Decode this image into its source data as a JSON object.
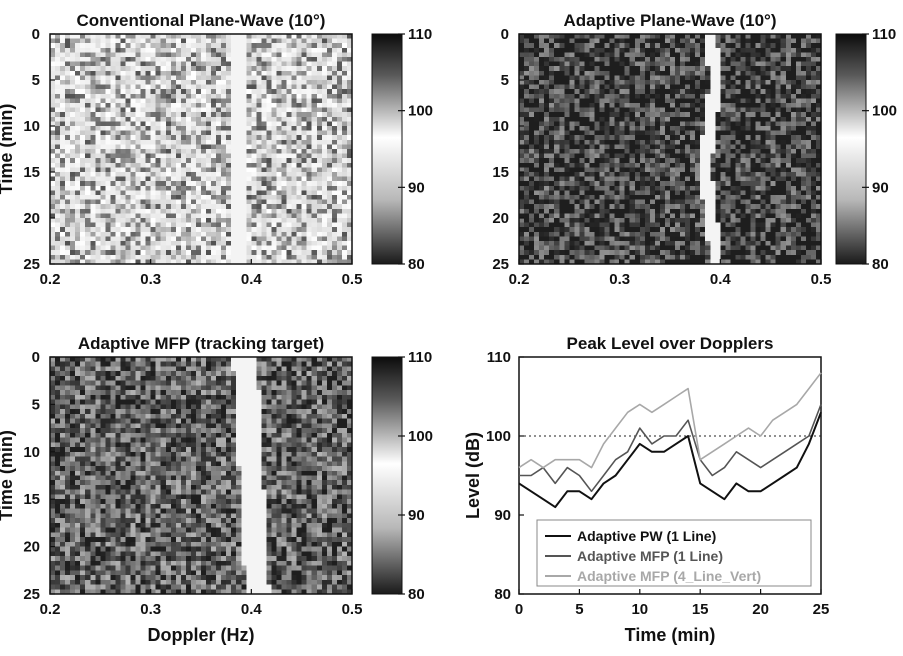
{
  "chart_data": [
    {
      "type": "heatmap",
      "title": "Conventional Plane-Wave (10°)",
      "xlabel": "",
      "ylabel": "Time (min)",
      "xlim": [
        0.2,
        0.5
      ],
      "ylim": [
        25,
        0
      ],
      "xticks": [
        "0.2",
        "0.3",
        "0.4",
        "0.5"
      ],
      "yticks": [
        "0",
        "5",
        "10",
        "15",
        "20",
        "25"
      ],
      "colorbar": {
        "range": [
          80,
          110
        ],
        "ticks": [
          "110",
          "100",
          "90",
          "80"
        ]
      },
      "features": {
        "background_level": 92,
        "ridge_doppler": 0.388,
        "ridge_level": 108
      }
    },
    {
      "type": "heatmap",
      "title": "Adaptive Plane-Wave (10°)",
      "xlabel": "",
      "ylabel": "",
      "xlim": [
        0.2,
        0.5
      ],
      "ylim": [
        25,
        0
      ],
      "xticks": [
        "0.2",
        "0.3",
        "0.4",
        "0.5"
      ],
      "yticks": [
        "0",
        "5",
        "10",
        "15",
        "20",
        "25"
      ],
      "colorbar": {
        "range": [
          80,
          110
        ],
        "ticks": [
          "110",
          "100",
          "90",
          "80"
        ]
      },
      "features": {
        "background_level": 82,
        "ridge_doppler": 0.39,
        "ridge_level": 108
      }
    },
    {
      "type": "heatmap",
      "title": "Adaptive MFP (tracking target)",
      "xlabel": "Doppler (Hz)",
      "ylabel": "Time (min)",
      "xlim": [
        0.2,
        0.5
      ],
      "ylim": [
        25,
        0
      ],
      "xticks": [
        "0.2",
        "0.3",
        "0.4",
        "0.5"
      ],
      "yticks": [
        "0",
        "5",
        "10",
        "15",
        "20",
        "25"
      ],
      "colorbar": {
        "range": [
          80,
          110
        ],
        "ticks": [
          "110",
          "100",
          "90",
          "80"
        ]
      },
      "features": {
        "background_level": 84,
        "ridge_doppler": 0.4,
        "ridge_level": 110
      }
    },
    {
      "type": "line",
      "title": "Peak Level over Dopplers",
      "xlabel": "Time (min)",
      "ylabel": "Level (dB)",
      "xlim": [
        0,
        25
      ],
      "ylim": [
        80,
        110
      ],
      "xticks": [
        "0",
        "5",
        "10",
        "15",
        "20",
        "25"
      ],
      "yticks": [
        "80",
        "90",
        "100",
        "110"
      ],
      "grid": false,
      "reference_line": 100,
      "legend": {
        "position": "bottom"
      },
      "series": [
        {
          "name": "Adaptive PW (1 Line)",
          "color": "#111111",
          "x": [
            0,
            1,
            2,
            3,
            4,
            5,
            6,
            7,
            8,
            9,
            10,
            11,
            12,
            13,
            14,
            15,
            16,
            17,
            18,
            19,
            20,
            21,
            22,
            23,
            24,
            25
          ],
          "y": [
            94,
            93,
            92,
            91,
            93,
            93,
            92,
            94,
            95,
            97,
            99,
            98,
            98,
            99,
            100,
            94,
            93,
            92,
            94,
            93,
            93,
            94,
            95,
            96,
            99,
            103
          ]
        },
        {
          "name": "Adaptive MFP (1 Line)",
          "color": "#555555",
          "x": [
            0,
            1,
            2,
            3,
            4,
            5,
            6,
            7,
            8,
            9,
            10,
            11,
            12,
            13,
            14,
            15,
            16,
            17,
            18,
            19,
            20,
            21,
            22,
            23,
            24,
            25
          ],
          "y": [
            95,
            95,
            96,
            94,
            96,
            95,
            93,
            95,
            97,
            98,
            101,
            99,
            100,
            100,
            102,
            97,
            95,
            96,
            98,
            97,
            96,
            97,
            98,
            99,
            100,
            104
          ]
        },
        {
          "name": "Adaptive MFP (4_Line_Vert)",
          "color": "#a8a8a8",
          "x": [
            0,
            1,
            2,
            3,
            4,
            5,
            6,
            7,
            8,
            9,
            10,
            11,
            12,
            13,
            14,
            15,
            16,
            17,
            18,
            19,
            20,
            21,
            22,
            23,
            24,
            25
          ],
          "y": [
            96,
            97,
            96,
            97,
            97,
            97,
            96,
            99,
            101,
            103,
            104,
            103,
            104,
            105,
            106,
            97,
            98,
            99,
            100,
            101,
            100,
            102,
            103,
            104,
            106,
            108
          ]
        }
      ]
    }
  ]
}
